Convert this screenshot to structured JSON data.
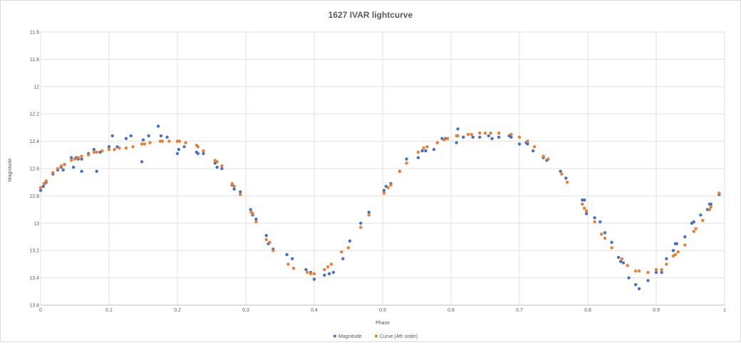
{
  "chart_data": {
    "type": "scatter",
    "title": "1627 IVAR lightcurve",
    "xlabel": "Phase",
    "ylabel": "Magnitude",
    "xlim": [
      0,
      1
    ],
    "ylim": [
      11.6,
      13.6
    ],
    "y_reversed": true,
    "x_ticks": [
      "0",
      "0.1",
      "0.2",
      "0.3",
      "0.4",
      "0.5",
      "0.6",
      "0.7",
      "0.8",
      "0.9",
      "1"
    ],
    "y_ticks": [
      "11.6",
      "11.8",
      "12",
      "12.2",
      "12.4",
      "12.6",
      "12.8",
      "13",
      "13.2",
      "13.4",
      "13.6"
    ],
    "grid": true,
    "legend_position": "bottom",
    "colors": {
      "magnitude": "#4472c4",
      "curve": "#ed7d31"
    },
    "series": [
      {
        "name": "Magnitude",
        "points": [
          [
            0.0,
            12.76
          ],
          [
            0.004,
            12.73
          ],
          [
            0.006,
            12.71
          ],
          [
            0.008,
            12.7
          ],
          [
            0.018,
            12.64
          ],
          [
            0.025,
            12.61
          ],
          [
            0.03,
            12.59
          ],
          [
            0.033,
            12.61
          ],
          [
            0.035,
            12.57
          ],
          [
            0.045,
            12.52
          ],
          [
            0.048,
            12.59
          ],
          [
            0.052,
            12.52
          ],
          [
            0.055,
            12.53
          ],
          [
            0.06,
            12.53
          ],
          [
            0.06,
            12.62
          ],
          [
            0.07,
            12.49
          ],
          [
            0.078,
            12.46
          ],
          [
            0.082,
            12.62
          ],
          [
            0.087,
            12.48
          ],
          [
            0.1,
            12.44
          ],
          [
            0.105,
            12.36
          ],
          [
            0.112,
            12.44
          ],
          [
            0.125,
            12.38
          ],
          [
            0.132,
            12.36
          ],
          [
            0.148,
            12.55
          ],
          [
            0.15,
            12.39
          ],
          [
            0.158,
            12.36
          ],
          [
            0.172,
            12.29
          ],
          [
            0.176,
            12.36
          ],
          [
            0.185,
            12.37
          ],
          [
            0.2,
            12.49
          ],
          [
            0.202,
            12.46
          ],
          [
            0.21,
            12.44
          ],
          [
            0.228,
            12.48
          ],
          [
            0.23,
            12.49
          ],
          [
            0.238,
            12.49
          ],
          [
            0.255,
            12.56
          ],
          [
            0.258,
            12.59
          ],
          [
            0.265,
            12.6
          ],
          [
            0.28,
            12.72
          ],
          [
            0.283,
            12.75
          ],
          [
            0.292,
            12.77
          ],
          [
            0.307,
            12.9
          ],
          [
            0.31,
            12.94
          ],
          [
            0.315,
            12.97
          ],
          [
            0.33,
            13.09
          ],
          [
            0.333,
            13.15
          ],
          [
            0.34,
            13.19
          ],
          [
            0.36,
            13.23
          ],
          [
            0.368,
            13.26
          ],
          [
            0.388,
            13.34
          ],
          [
            0.395,
            13.36
          ],
          [
            0.4,
            13.41
          ],
          [
            0.415,
            13.38
          ],
          [
            0.422,
            13.37
          ],
          [
            0.428,
            13.36
          ],
          [
            0.442,
            13.26
          ],
          [
            0.452,
            13.13
          ],
          [
            0.468,
            13.0
          ],
          [
            0.48,
            12.92
          ],
          [
            0.502,
            12.76
          ],
          [
            0.505,
            12.73
          ],
          [
            0.512,
            12.71
          ],
          [
            0.525,
            12.62
          ],
          [
            0.535,
            12.53
          ],
          [
            0.552,
            12.52
          ],
          [
            0.558,
            12.47
          ],
          [
            0.563,
            12.47
          ],
          [
            0.575,
            12.46
          ],
          [
            0.587,
            12.38
          ],
          [
            0.592,
            12.38
          ],
          [
            0.608,
            12.41
          ],
          [
            0.61,
            12.31
          ],
          [
            0.618,
            12.37
          ],
          [
            0.632,
            12.37
          ],
          [
            0.642,
            12.37
          ],
          [
            0.655,
            12.36
          ],
          [
            0.66,
            12.38
          ],
          [
            0.67,
            12.37
          ],
          [
            0.685,
            12.36
          ],
          [
            0.688,
            12.37
          ],
          [
            0.7,
            12.42
          ],
          [
            0.71,
            12.41
          ],
          [
            0.712,
            12.42
          ],
          [
            0.72,
            12.47
          ],
          [
            0.735,
            12.52
          ],
          [
            0.74,
            12.54
          ],
          [
            0.76,
            12.62
          ],
          [
            0.768,
            12.67
          ],
          [
            0.792,
            12.83
          ],
          [
            0.795,
            12.83
          ],
          [
            0.798,
            12.93
          ],
          [
            0.81,
            12.96
          ],
          [
            0.818,
            12.99
          ],
          [
            0.825,
            13.07
          ],
          [
            0.835,
            13.14
          ],
          [
            0.845,
            13.25
          ],
          [
            0.848,
            13.28
          ],
          [
            0.852,
            13.29
          ],
          [
            0.86,
            13.4
          ],
          [
            0.87,
            13.45
          ],
          [
            0.875,
            13.48
          ],
          [
            0.888,
            13.42
          ],
          [
            0.9,
            13.36
          ],
          [
            0.908,
            13.36
          ],
          [
            0.915,
            13.26
          ],
          [
            0.925,
            13.2
          ],
          [
            0.928,
            13.15
          ],
          [
            0.93,
            13.15
          ],
          [
            0.942,
            13.1
          ],
          [
            0.952,
            13.0
          ],
          [
            0.955,
            12.99
          ],
          [
            0.965,
            12.94
          ],
          [
            0.975,
            12.9
          ],
          [
            0.978,
            12.86
          ],
          [
            0.98,
            12.86
          ],
          [
            0.992,
            12.79
          ]
        ]
      },
      {
        "name": "Curve (4th order)",
        "points": [
          [
            0.0,
            12.74
          ],
          [
            0.005,
            12.71
          ],
          [
            0.008,
            12.69
          ],
          [
            0.018,
            12.63
          ],
          [
            0.025,
            12.6
          ],
          [
            0.03,
            12.58
          ],
          [
            0.035,
            12.57
          ],
          [
            0.045,
            12.54
          ],
          [
            0.05,
            12.53
          ],
          [
            0.055,
            12.52
          ],
          [
            0.06,
            12.51
          ],
          [
            0.07,
            12.5
          ],
          [
            0.078,
            12.48
          ],
          [
            0.082,
            12.48
          ],
          [
            0.09,
            12.47
          ],
          [
            0.1,
            12.46
          ],
          [
            0.108,
            12.46
          ],
          [
            0.115,
            12.45
          ],
          [
            0.125,
            12.45
          ],
          [
            0.135,
            12.44
          ],
          [
            0.148,
            12.42
          ],
          [
            0.152,
            12.42
          ],
          [
            0.16,
            12.41
          ],
          [
            0.175,
            12.4
          ],
          [
            0.178,
            12.4
          ],
          [
            0.188,
            12.4
          ],
          [
            0.2,
            12.4
          ],
          [
            0.203,
            12.4
          ],
          [
            0.212,
            12.41
          ],
          [
            0.228,
            12.43
          ],
          [
            0.23,
            12.44
          ],
          [
            0.238,
            12.47
          ],
          [
            0.255,
            12.54
          ],
          [
            0.258,
            12.55
          ],
          [
            0.265,
            12.58
          ],
          [
            0.28,
            12.71
          ],
          [
            0.283,
            12.73
          ],
          [
            0.292,
            12.79
          ],
          [
            0.308,
            12.92
          ],
          [
            0.31,
            12.93
          ],
          [
            0.315,
            12.99
          ],
          [
            0.33,
            13.12
          ],
          [
            0.335,
            13.14
          ],
          [
            0.34,
            13.2
          ],
          [
            0.362,
            13.3
          ],
          [
            0.37,
            13.33
          ],
          [
            0.39,
            13.36
          ],
          [
            0.395,
            13.37
          ],
          [
            0.4,
            13.37
          ],
          [
            0.415,
            13.34
          ],
          [
            0.42,
            13.32
          ],
          [
            0.425,
            13.3
          ],
          [
            0.44,
            13.21
          ],
          [
            0.45,
            13.18
          ],
          [
            0.468,
            13.03
          ],
          [
            0.48,
            12.94
          ],
          [
            0.502,
            12.78
          ],
          [
            0.508,
            12.74
          ],
          [
            0.512,
            12.72
          ],
          [
            0.525,
            12.62
          ],
          [
            0.535,
            12.56
          ],
          [
            0.552,
            12.48
          ],
          [
            0.56,
            12.45
          ],
          [
            0.565,
            12.44
          ],
          [
            0.58,
            12.41
          ],
          [
            0.59,
            12.39
          ],
          [
            0.595,
            12.38
          ],
          [
            0.608,
            12.36
          ],
          [
            0.61,
            12.36
          ],
          [
            0.625,
            12.35
          ],
          [
            0.63,
            12.35
          ],
          [
            0.642,
            12.34
          ],
          [
            0.65,
            12.34
          ],
          [
            0.658,
            12.34
          ],
          [
            0.67,
            12.34
          ],
          [
            0.688,
            12.35
          ],
          [
            0.7,
            12.37
          ],
          [
            0.712,
            12.4
          ],
          [
            0.722,
            12.44
          ],
          [
            0.735,
            12.51
          ],
          [
            0.742,
            12.53
          ],
          [
            0.762,
            12.64
          ],
          [
            0.77,
            12.7
          ],
          [
            0.792,
            12.86
          ],
          [
            0.795,
            12.89
          ],
          [
            0.798,
            12.91
          ],
          [
            0.81,
            12.99
          ],
          [
            0.82,
            13.08
          ],
          [
            0.825,
            13.11
          ],
          [
            0.835,
            13.18
          ],
          [
            0.85,
            13.26
          ],
          [
            0.858,
            13.31
          ],
          [
            0.87,
            13.35
          ],
          [
            0.875,
            13.35
          ],
          [
            0.888,
            13.36
          ],
          [
            0.9,
            13.34
          ],
          [
            0.908,
            13.34
          ],
          [
            0.915,
            13.3
          ],
          [
            0.925,
            13.24
          ],
          [
            0.928,
            13.23
          ],
          [
            0.932,
            13.21
          ],
          [
            0.942,
            13.16
          ],
          [
            0.955,
            13.06
          ],
          [
            0.958,
            13.04
          ],
          [
            0.968,
            12.98
          ],
          [
            0.978,
            12.9
          ],
          [
            0.98,
            12.88
          ],
          [
            0.992,
            12.78
          ]
        ]
      }
    ]
  }
}
